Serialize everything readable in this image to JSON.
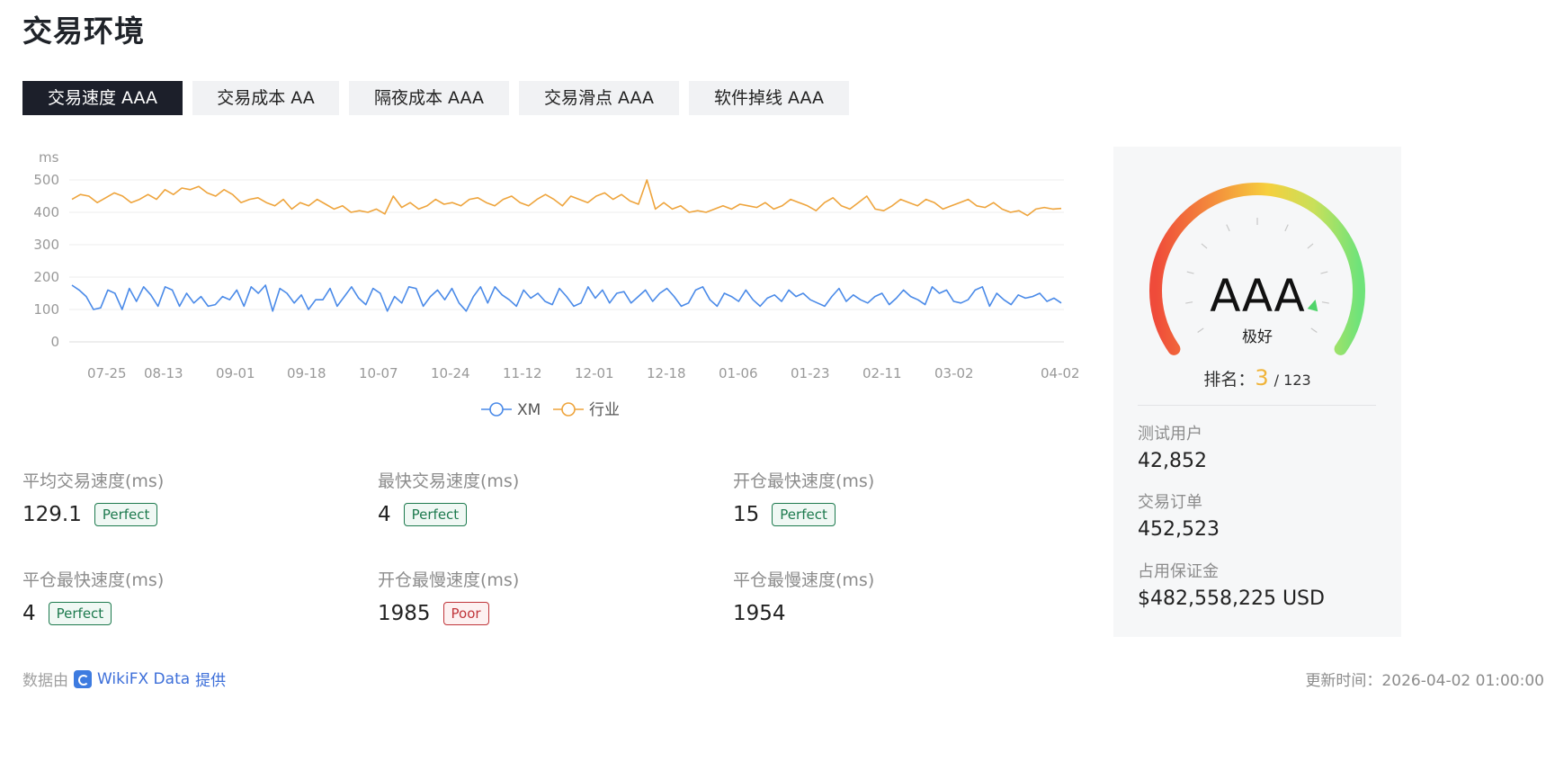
{
  "page_title": "交易环境",
  "tabs": [
    {
      "label": "交易速度 AAA",
      "active": true
    },
    {
      "label": "交易成本 AA",
      "active": false
    },
    {
      "label": "隔夜成本 AAA",
      "active": false
    },
    {
      "label": "交易滑点 AAA",
      "active": false
    },
    {
      "label": "软件掉线 AAA",
      "active": false
    }
  ],
  "chart_data": {
    "type": "line",
    "ylabel": "ms",
    "ylim": [
      0,
      500
    ],
    "yticks": [
      "0",
      "100",
      "200",
      "300",
      "400",
      "500"
    ],
    "xticks": [
      "07-25",
      "08-13",
      "09-01",
      "09-18",
      "10-07",
      "10-24",
      "11-12",
      "12-01",
      "12-18",
      "01-06",
      "01-23",
      "02-11",
      "03-02",
      "04-02"
    ],
    "series": [
      {
        "name": "XM",
        "color": "#4a8ae8",
        "values": [
          175,
          160,
          140,
          100,
          105,
          160,
          150,
          100,
          165,
          125,
          170,
          145,
          110,
          170,
          160,
          110,
          150,
          120,
          140,
          110,
          115,
          140,
          130,
          160,
          110,
          170,
          150,
          175,
          95,
          165,
          150,
          120,
          145,
          100,
          130,
          130,
          165,
          110,
          140,
          170,
          135,
          115,
          165,
          150,
          95,
          140,
          120,
          170,
          165,
          110,
          140,
          160,
          130,
          165,
          120,
          95,
          140,
          170,
          120,
          170,
          145,
          130,
          110,
          160,
          135,
          150,
          125,
          115,
          165,
          140,
          110,
          120,
          170,
          135,
          160,
          120,
          150,
          155,
          120,
          140,
          160,
          125,
          150,
          165,
          140,
          110,
          120,
          160,
          170,
          130,
          110,
          150,
          140,
          125,
          160,
          130,
          110,
          135,
          145,
          125,
          160,
          140,
          150,
          130,
          120,
          110,
          140,
          165,
          125,
          145,
          130,
          120,
          140,
          150,
          115,
          135,
          160,
          140,
          130,
          115,
          170,
          150,
          160,
          125,
          120,
          130,
          160,
          170,
          110,
          150,
          130,
          115,
          145,
          135,
          140,
          150,
          125,
          135,
          120
        ]
      },
      {
        "name": "行业",
        "color": "#eea43c",
        "values": [
          440,
          455,
          450,
          430,
          445,
          460,
          450,
          430,
          440,
          455,
          440,
          470,
          455,
          475,
          470,
          480,
          460,
          450,
          470,
          455,
          430,
          440,
          445,
          430,
          420,
          440,
          410,
          430,
          420,
          440,
          425,
          410,
          420,
          400,
          405,
          400,
          410,
          395,
          450,
          415,
          430,
          410,
          420,
          440,
          425,
          430,
          420,
          440,
          445,
          430,
          420,
          440,
          450,
          430,
          420,
          440,
          455,
          440,
          420,
          450,
          440,
          430,
          450,
          460,
          440,
          455,
          435,
          425,
          500,
          410,
          430,
          410,
          420,
          400,
          405,
          400,
          410,
          420,
          410,
          425,
          420,
          415,
          430,
          410,
          420,
          440,
          430,
          420,
          405,
          430,
          445,
          420,
          410,
          430,
          450,
          410,
          405,
          420,
          440,
          430,
          420,
          440,
          430,
          410,
          420,
          430,
          440,
          420,
          415,
          430,
          410,
          400,
          405,
          390,
          410,
          415,
          410,
          412
        ]
      }
    ],
    "legend": "bottom-center"
  },
  "metrics": [
    {
      "label": "平均交易速度(ms)",
      "value": "129.1",
      "badge": "Perfect",
      "badge_type": "perfect"
    },
    {
      "label": "最快交易速度(ms)",
      "value": "4",
      "badge": "Perfect",
      "badge_type": "perfect"
    },
    {
      "label": "开仓最快速度(ms)",
      "value": "15",
      "badge": "Perfect",
      "badge_type": "perfect"
    },
    {
      "label": "平仓最快速度(ms)",
      "value": "4",
      "badge": "Perfect",
      "badge_type": "perfect"
    },
    {
      "label": "开仓最慢速度(ms)",
      "value": "1985",
      "badge": "Poor",
      "badge_type": "poor"
    },
    {
      "label": "平仓最慢速度(ms)",
      "value": "1954",
      "badge": "",
      "badge_type": ""
    }
  ],
  "gauge": {
    "grade": "AAA",
    "desc": "极好",
    "level": 0.92
  },
  "rank": {
    "label": "排名：",
    "value": "3",
    "total": "/ 123"
  },
  "stats": [
    {
      "label": "测试用户",
      "value": "42,852"
    },
    {
      "label": "交易订单",
      "value": "452,523"
    },
    {
      "label": "占用保证金",
      "value": "$482,558,225 USD"
    }
  ],
  "footer": {
    "prefix": "数据由",
    "brand": "WikiFX Data",
    "suffix": "提供",
    "updated": "更新时间：2026-04-02 01:00:00"
  }
}
